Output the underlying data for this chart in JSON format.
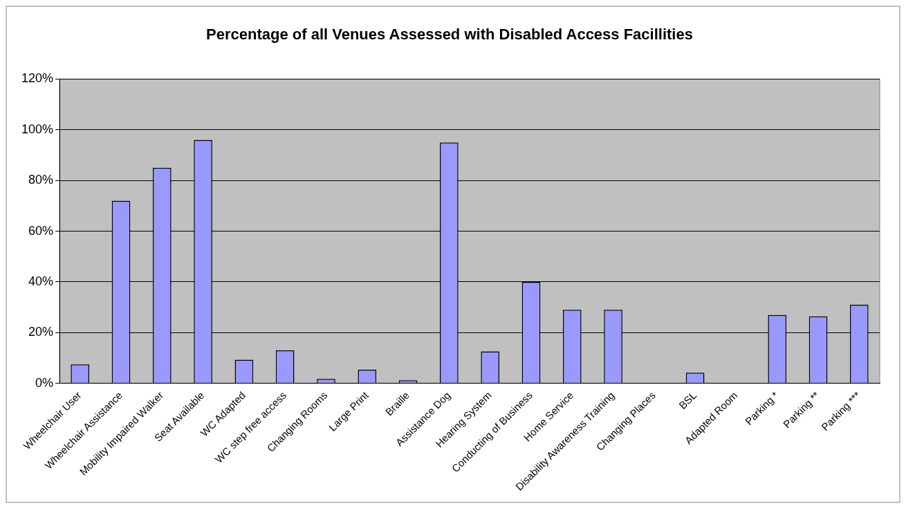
{
  "chart_data": {
    "type": "bar",
    "title": "Percentage of all Venues Assessed with Disabled Access Facillities",
    "categories": [
      "Wheelchair User",
      "Wheelchair Assistance",
      "Mobility Impaired Walker",
      "Seat Available",
      "WC Adapted",
      "WC step free access",
      "Changing Rooms",
      "Large Print",
      "Braille",
      "Assistance Dog",
      "Hearing System",
      "Conducting of Business",
      "Home Service",
      "Disability Awareness Training",
      "Changing Places",
      "BSL",
      "Adapted Room",
      "Parking *",
      "Parking **",
      "Parking ***"
    ],
    "values": [
      7.5,
      72,
      85,
      96,
      9.3,
      13,
      1.8,
      5.4,
      1.2,
      95,
      12.6,
      40,
      29,
      29,
      0,
      4.2,
      0,
      27,
      26.4,
      31
    ],
    "color": "#9999ff",
    "ylim": [
      0,
      120
    ],
    "yticks": [
      {
        "value": 0,
        "label": "0%"
      },
      {
        "value": 20,
        "label": "20%"
      },
      {
        "value": 40,
        "label": "40%"
      },
      {
        "value": 60,
        "label": "60%"
      },
      {
        "value": 80,
        "label": "80%"
      },
      {
        "value": 100,
        "label": "100%"
      },
      {
        "value": 120,
        "label": "120%"
      }
    ],
    "grid": "y",
    "legend": false
  }
}
